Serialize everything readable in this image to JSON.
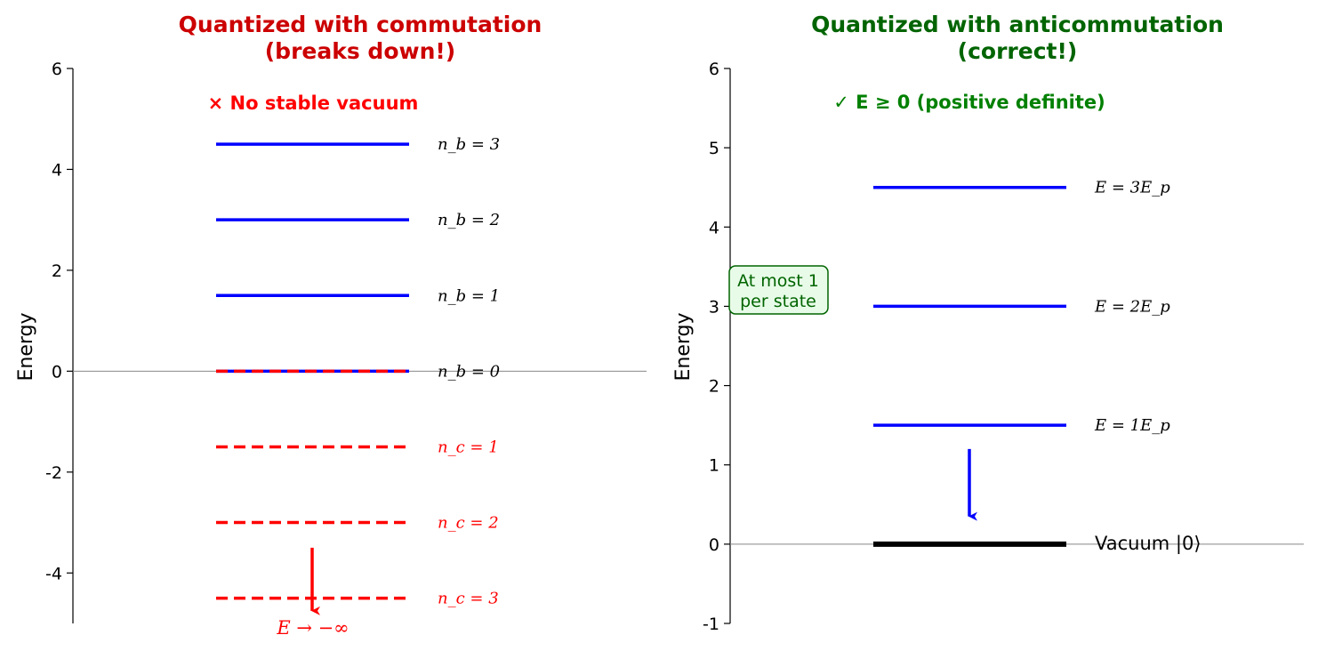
{
  "colors": {
    "left_title": "#cc0000",
    "right_title": "#006400",
    "boson": "#0000ff",
    "commutation": "#ff0000",
    "vacuum": "#000000",
    "ok_note": "#008000",
    "box_fill": "#e8fbe8",
    "box_edge": "#006400"
  },
  "chart_data": [
    {
      "type": "energy-level-diagram",
      "title": "Quantized with commutation",
      "subtitle": "(breaks down!)",
      "xlabel": "",
      "ylabel": "Energy",
      "ylim": [
        -5,
        6
      ],
      "yticks": [
        -4,
        -2,
        0,
        2,
        4,
        6
      ],
      "ytick_labels": [
        "-4",
        "-2",
        "0",
        "2",
        "4",
        "6"
      ],
      "grid": false,
      "baseline": 0,
      "levels": [
        {
          "energy": 4.5,
          "label": "n_b = 3",
          "style": "solid",
          "series": "boson"
        },
        {
          "energy": 3.0,
          "label": "n_b = 2",
          "style": "solid",
          "series": "boson"
        },
        {
          "energy": 1.5,
          "label": "n_b = 1",
          "style": "solid",
          "series": "boson"
        },
        {
          "energy": 0.0,
          "label": "n_b = 0",
          "style": "solid",
          "series": "boson"
        },
        {
          "energy": 0.0,
          "label": "",
          "style": "dashed",
          "series": "commutation"
        },
        {
          "energy": -1.5,
          "label": "n_c = 1",
          "style": "dashed",
          "series": "commutation"
        },
        {
          "energy": -3.0,
          "label": "n_c = 2",
          "style": "dashed",
          "series": "commutation"
        },
        {
          "energy": -4.5,
          "label": "n_c = 3",
          "style": "dashed",
          "series": "commutation"
        }
      ],
      "arrow": {
        "from": -3.5,
        "to": -4.75,
        "color_key": "commutation"
      },
      "annotations": {
        "top_note": "× No stable vacuum",
        "bottom_note": "E → −∞"
      }
    },
    {
      "type": "energy-level-diagram",
      "title": "Quantized with anticommutation",
      "subtitle": "(correct!)",
      "xlabel": "",
      "ylabel": "Energy",
      "ylim": [
        -1,
        6
      ],
      "yticks": [
        -1,
        0,
        1,
        2,
        3,
        4,
        5,
        6
      ],
      "ytick_labels": [
        "-1",
        "0",
        "1",
        "2",
        "3",
        "4",
        "5",
        "6"
      ],
      "grid": false,
      "baseline": 0,
      "levels": [
        {
          "energy": 4.5,
          "label": "E = 3E_p",
          "style": "solid",
          "series": "boson"
        },
        {
          "energy": 3.0,
          "label": "E = 2E_p",
          "style": "solid",
          "series": "boson"
        },
        {
          "energy": 1.5,
          "label": "E = 1E_p",
          "style": "solid",
          "series": "boson"
        },
        {
          "energy": 0.0,
          "label": "Vacuum |0⟩",
          "style": "solid",
          "series": "vacuum"
        }
      ],
      "arrow": {
        "from": 1.2,
        "to": 0.35,
        "color_key": "boson"
      },
      "annotations": {
        "top_note": "✓ E ≥ 0 (positive definite)",
        "box_line1": "At most 1",
        "box_line2": "per state"
      }
    }
  ]
}
